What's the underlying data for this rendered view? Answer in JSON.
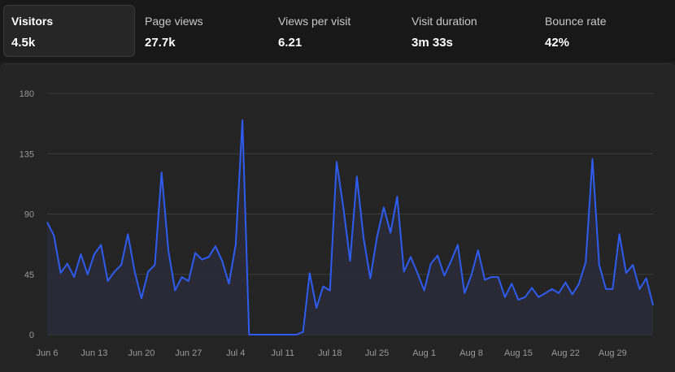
{
  "metrics": [
    {
      "label": "Visitors",
      "value": "4.5k",
      "active": true
    },
    {
      "label": "Page views",
      "value": "27.7k",
      "active": false
    },
    {
      "label": "Views per visit",
      "value": "6.21",
      "active": false
    },
    {
      "label": "Visit duration",
      "value": "3m 33s",
      "active": false
    },
    {
      "label": "Bounce rate",
      "value": "42%",
      "active": false
    }
  ],
  "colors": {
    "line": "#2f5cf0",
    "grid": "#3c3c3c",
    "area": "#2a2b38"
  },
  "chart_data": {
    "type": "area",
    "title": "",
    "xlabel": "",
    "ylabel": "",
    "ylim": [
      0,
      180
    ],
    "yticks": [
      0,
      45,
      90,
      135,
      180
    ],
    "xtick_labels": [
      "Jun 6",
      "Jun 13",
      "Jun 20",
      "Jun 27",
      "Jul 4",
      "Jul 11",
      "Jul 18",
      "Jul 25",
      "Aug 1",
      "Aug 8",
      "Aug 15",
      "Aug 22",
      "Aug 29"
    ],
    "grid": true,
    "series": [
      {
        "values": [
          84,
          74,
          46,
          53,
          43,
          60,
          45,
          60,
          67,
          40,
          47,
          52,
          75,
          47,
          27,
          47,
          52,
          121,
          63,
          33,
          43,
          40,
          61,
          56,
          58,
          66,
          55,
          38,
          67,
          160,
          0,
          0,
          0,
          0,
          0,
          0,
          0,
          0,
          2,
          46,
          20,
          36,
          33,
          129,
          95,
          55,
          118,
          72,
          42,
          73,
          95,
          76,
          103,
          47,
          58,
          46,
          33,
          53,
          59,
          44,
          55,
          67,
          31,
          44,
          63,
          41,
          43,
          43,
          28,
          38,
          26,
          28,
          35,
          28,
          31,
          34,
          31,
          39,
          30,
          38,
          54,
          131,
          52,
          34,
          34,
          75,
          46,
          52,
          34,
          42,
          22
        ]
      }
    ]
  }
}
